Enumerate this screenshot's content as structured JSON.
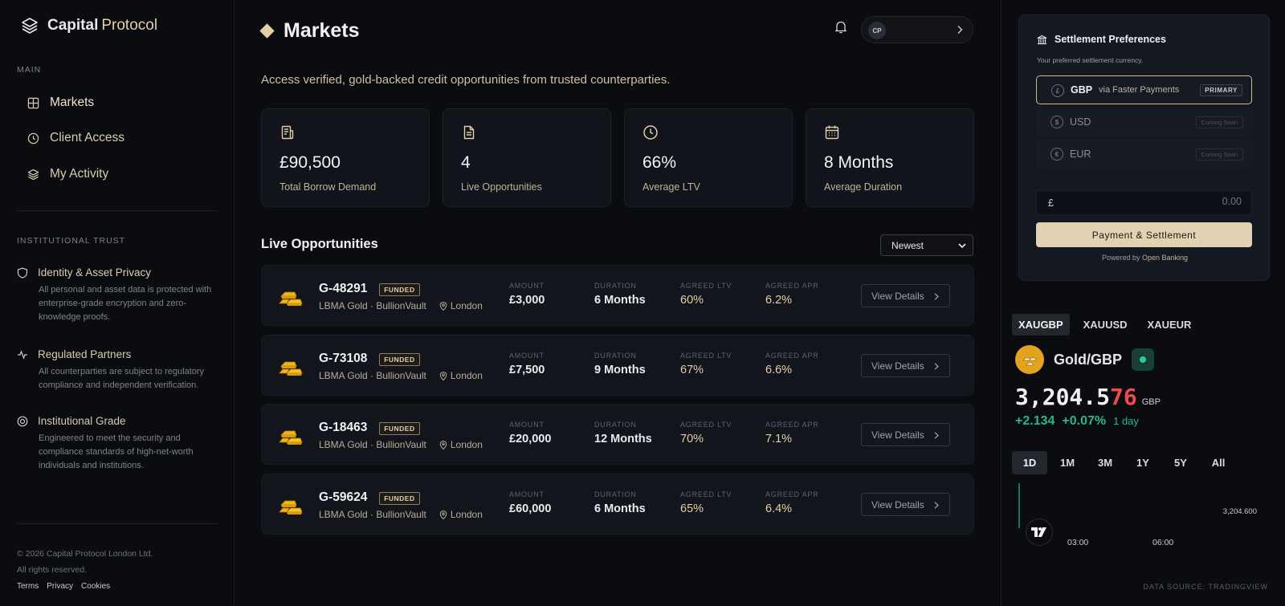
{
  "brand": {
    "name_part1": "Capital",
    "name_part2": "Protocol"
  },
  "sidebar": {
    "main_title": "MAIN",
    "nav": [
      {
        "label": "Markets",
        "icon": "grid-icon"
      },
      {
        "label": "Client Access",
        "icon": "clock-icon"
      },
      {
        "label": "My Activity",
        "icon": "layers-icon"
      }
    ],
    "trust_title": "INSTITUTIONAL TRUST",
    "trust": [
      {
        "title": "Identity & Asset Privacy",
        "body": "All personal and asset data is protected with enterprise-grade encryption and zero-knowledge proofs.",
        "icon": "shield-icon"
      },
      {
        "title": "Regulated Partners",
        "body": "All counterparties are subject to regulatory compliance and independent verification.",
        "icon": "pulse-icon"
      },
      {
        "title": "Institutional Grade",
        "body": "Engineered to meet the security and compliance standards of high-net-worth individuals and institutions.",
        "icon": "target-icon"
      }
    ],
    "copyright": "© 2026 Capital Protocol London Ltd.",
    "rights": "All rights reserved.",
    "links": [
      "Terms",
      "Privacy",
      "Cookies"
    ]
  },
  "header": {
    "title": "Markets",
    "user_initials": "CP",
    "subtitle": "Access verified, gold-backed credit opportunities from trusted counterparties."
  },
  "stats": [
    {
      "value": "£90,500",
      "label": "Total Borrow Demand",
      "icon": "receipt-icon"
    },
    {
      "value": "4",
      "label": "Live Opportunities",
      "icon": "document-icon"
    },
    {
      "value": "66%",
      "label": "Average LTV",
      "icon": "clock-icon"
    },
    {
      "value": "8 Months",
      "label": "Average Duration",
      "icon": "calendar-icon"
    }
  ],
  "opportunities": {
    "title": "Live Opportunities",
    "sort_value": "Newest",
    "col_labels": {
      "amount": "AMOUNT",
      "duration": "DURATION",
      "ltv": "AGREED LTV",
      "apr": "AGREED APR"
    },
    "view_label": "View Details",
    "items": [
      {
        "code": "G-48291",
        "status": "FUNDED",
        "asset": "LBMA Gold · BullionVault",
        "location": "London",
        "amount": "£3,000",
        "duration": "6 Months",
        "ltv": "60%",
        "apr": "6.2%"
      },
      {
        "code": "G-73108",
        "status": "FUNDED",
        "asset": "LBMA Gold · BullionVault",
        "location": "London",
        "amount": "£7,500",
        "duration": "9 Months",
        "ltv": "67%",
        "apr": "6.6%"
      },
      {
        "code": "G-18463",
        "status": "FUNDED",
        "asset": "LBMA Gold · BullionVault",
        "location": "London",
        "amount": "£20,000",
        "duration": "12 Months",
        "ltv": "70%",
        "apr": "7.1%"
      },
      {
        "code": "G-59624",
        "status": "FUNDED",
        "asset": "LBMA Gold · BullionVault",
        "location": "London",
        "amount": "£60,000",
        "duration": "6 Months",
        "ltv": "65%",
        "apr": "6.4%"
      }
    ]
  },
  "settlement": {
    "title": "Settlement Preferences",
    "subtitle": "Your preferred settlement currency.",
    "currencies": [
      {
        "symbol": "£",
        "code": "GBP",
        "via": "via Faster Payments",
        "tag": "PRIMARY"
      },
      {
        "symbol": "$",
        "code": "USD",
        "tag": "Coming Soon"
      },
      {
        "symbol": "€",
        "code": "EUR",
        "tag": "Coming Soon"
      }
    ],
    "amount_symbol": "£",
    "amount_placeholder": "0.00",
    "pay_button": "Payment & Settlement",
    "powered_by": "Powered by",
    "powered_name": "Open Banking"
  },
  "ticker": {
    "symbols": [
      "XAUGBP",
      "XAUUSD",
      "XAUEUR"
    ],
    "active_symbol": "XAUGBP",
    "pair": "Gold/GBP",
    "price_main": "3,204.5",
    "price_tail": "76",
    "currency": "GBP",
    "change": "+2.134",
    "change_pct": "+0.07%",
    "period": "1 day",
    "ranges": [
      "1D",
      "1M",
      "3M",
      "1Y",
      "5Y",
      "All"
    ],
    "active_range": "1D",
    "chart_price_label": "3,204.600",
    "time_labels": [
      "03:00",
      "06:00"
    ],
    "data_source": "DATA SOURCE: TRADINGVIEW",
    "colors": {
      "up": "#2bb58a",
      "down": "#f04a4a",
      "accent": "#e4cfa7"
    }
  }
}
